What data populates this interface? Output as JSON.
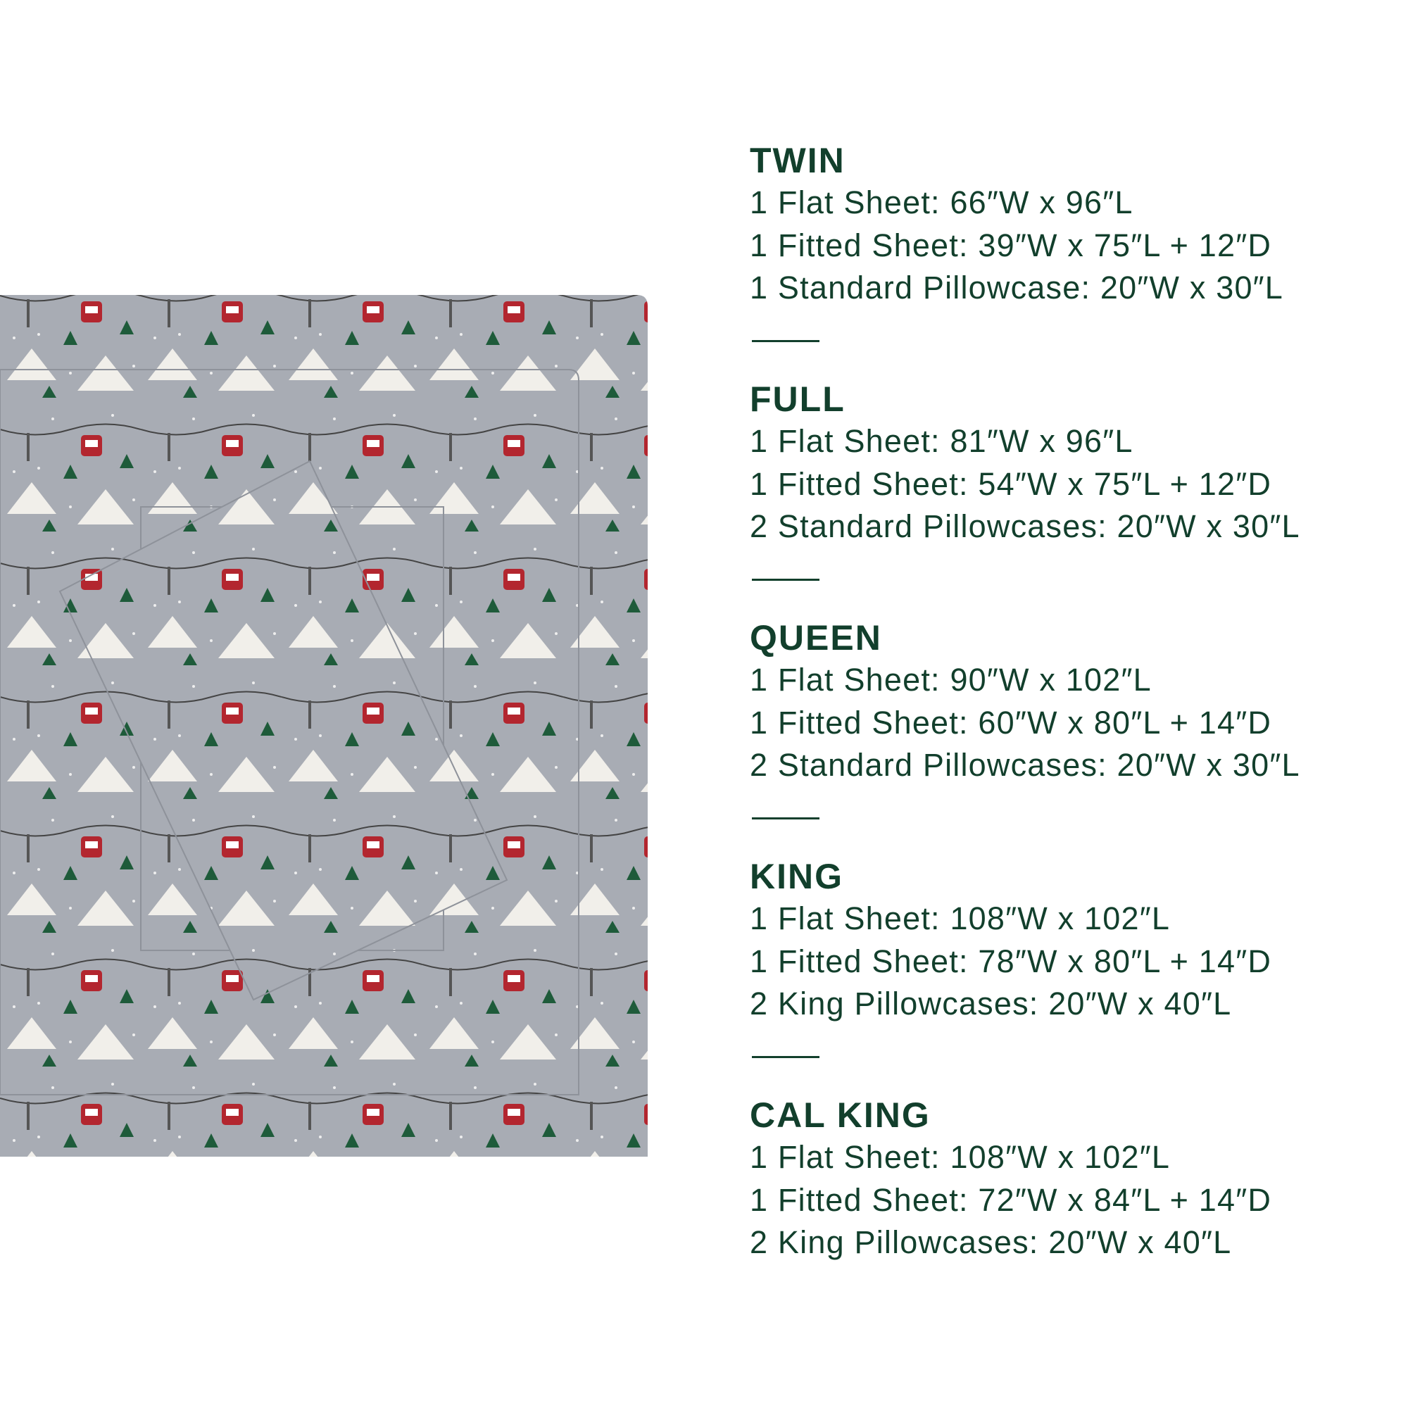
{
  "colors": {
    "text": "#123f2c",
    "fabric": "#a8acb4",
    "gondola": "#b3262f",
    "tree": "#1e5b3a",
    "mountain": "#f1efea"
  },
  "image": {
    "description_icons": [
      "gondola-icon",
      "tree-icon",
      "mountain-icon"
    ]
  },
  "sizes": [
    {
      "title": "TWIN",
      "lines": [
        "1 Flat Sheet: 66″W x 96″L",
        "1 Fitted Sheet: 39″W x 75″L + 12″D",
        "1 Standard Pillowcase: 20″W x 30″L"
      ]
    },
    {
      "title": "FULL",
      "lines": [
        "1 Flat Sheet: 81″W x 96″L",
        "1 Fitted Sheet: 54″W x 75″L + 12″D",
        "2 Standard Pillowcases: 20″W x 30″L"
      ]
    },
    {
      "title": "QUEEN",
      "lines": [
        "1 Flat Sheet: 90″W x 102″L",
        "1 Fitted Sheet: 60″W x 80″L + 14″D",
        "2 Standard Pillowcases: 20″W x 30″L"
      ]
    },
    {
      "title": "KING",
      "lines": [
        "1 Flat Sheet: 108″W x 102″L",
        "1 Fitted Sheet: 78″W x 80″L + 14″D",
        "2 King Pillowcases: 20″W x 40″L"
      ]
    },
    {
      "title": "CAL KING",
      "lines": [
        "1 Flat Sheet: 108″W x 102″L",
        "1 Fitted Sheet: 72″W x 84″L + 14″D",
        "2 King Pillowcases: 20″W x 40″L"
      ]
    }
  ]
}
